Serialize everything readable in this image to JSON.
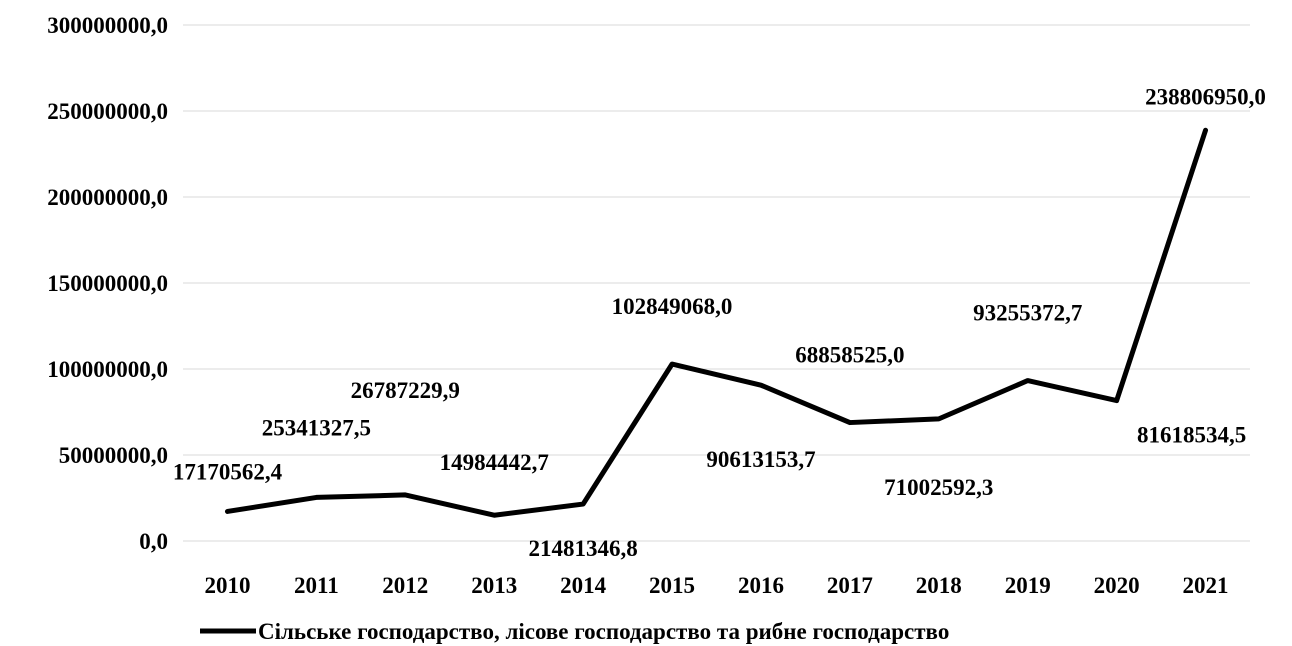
{
  "chart_data": {
    "type": "line",
    "title": "",
    "xlabel": "",
    "ylabel": "",
    "ylim": [
      0,
      300000000
    ],
    "yticks": [
      {
        "value": 0,
        "label": "0,0"
      },
      {
        "value": 50000000,
        "label": "50000000,0"
      },
      {
        "value": 100000000,
        "label": "100000000,0"
      },
      {
        "value": 150000000,
        "label": "150000000,0"
      },
      {
        "value": 200000000,
        "label": "200000000,0"
      },
      {
        "value": 250000000,
        "label": "250000000,0"
      },
      {
        "value": 300000000,
        "label": "300000000,0"
      }
    ],
    "categories": [
      "2010",
      "2011",
      "2012",
      "2013",
      "2014",
      "2015",
      "2016",
      "2017",
      "2018",
      "2019",
      "2020",
      "2021"
    ],
    "grid": true,
    "legend_position": "bottom",
    "colors": {
      "line": "#000000",
      "grid": "#d9d9d9"
    },
    "series": [
      {
        "name": "Сільське господарство, лісове господарство та рибне господарство",
        "values": [
          17170562.4,
          25341327.5,
          26787229.9,
          14984442.7,
          21481346.8,
          102849068.0,
          90613153.7,
          68858525.0,
          71002592.3,
          93255372.7,
          81618534.5,
          238806950.0
        ],
        "labels": [
          "17170562,4",
          "25341327,5",
          "26787229,9",
          "14984442,7",
          "21481346,8",
          "102849068,0",
          "90613153,7",
          "68858525,0",
          "71002592,3",
          "93255372,7",
          "81618534,5",
          "238806950,0"
        ]
      }
    ]
  }
}
